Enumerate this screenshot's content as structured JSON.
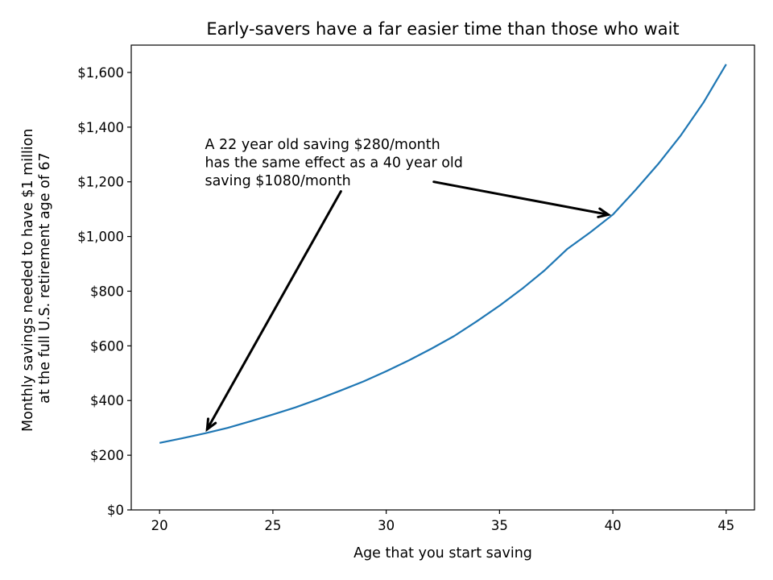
{
  "chart_data": {
    "type": "line",
    "title": "Early-savers have a far easier time than those who wait",
    "xlabel": "Age that you start saving",
    "ylabel": [
      "Monthly savings needed to have $1 million",
      "at the full U.S. retirement age of 67"
    ],
    "xlim": [
      18.75,
      46.25
    ],
    "ylim": [
      0,
      1700
    ],
    "xticks": [
      20,
      25,
      30,
      35,
      40,
      45
    ],
    "xtick_labels": [
      "20",
      "25",
      "30",
      "35",
      "40",
      "45"
    ],
    "yticks": [
      0,
      200,
      400,
      600,
      800,
      1000,
      1200,
      1400,
      1600
    ],
    "ytick_labels": [
      "$0",
      "$200",
      "$400",
      "$600",
      "$800",
      "$1,000",
      "$1,200",
      "$1,400",
      "$1,600"
    ],
    "grid": false,
    "series": [
      {
        "color": "#1f77b4",
        "x": [
          20,
          21,
          22,
          23,
          24,
          25,
          26,
          27,
          28,
          29,
          30,
          31,
          32,
          33,
          34,
          35,
          36,
          37,
          38,
          39,
          40,
          41,
          42,
          43,
          44,
          45
        ],
        "y": [
          245,
          262,
          280,
          300,
          324,
          349,
          375,
          405,
          437,
          470,
          507,
          547,
          590,
          636,
          690,
          747,
          809,
          877,
          955,
          1015,
          1080,
          1170,
          1265,
          1370,
          1490,
          1630
        ]
      }
    ],
    "annotation": {
      "lines": [
        "A 22 year old saving $280/month",
        "has the same effect as a 40 year old",
        "saving $1080/month"
      ],
      "arrows": [
        {
          "from": [
            28,
            1165
          ],
          "to": [
            22.1,
            295
          ]
        },
        {
          "from": [
            32.1,
            1200
          ],
          "to": [
            39.8,
            1080
          ]
        }
      ],
      "text_anchor": [
        22,
        1320
      ]
    }
  }
}
